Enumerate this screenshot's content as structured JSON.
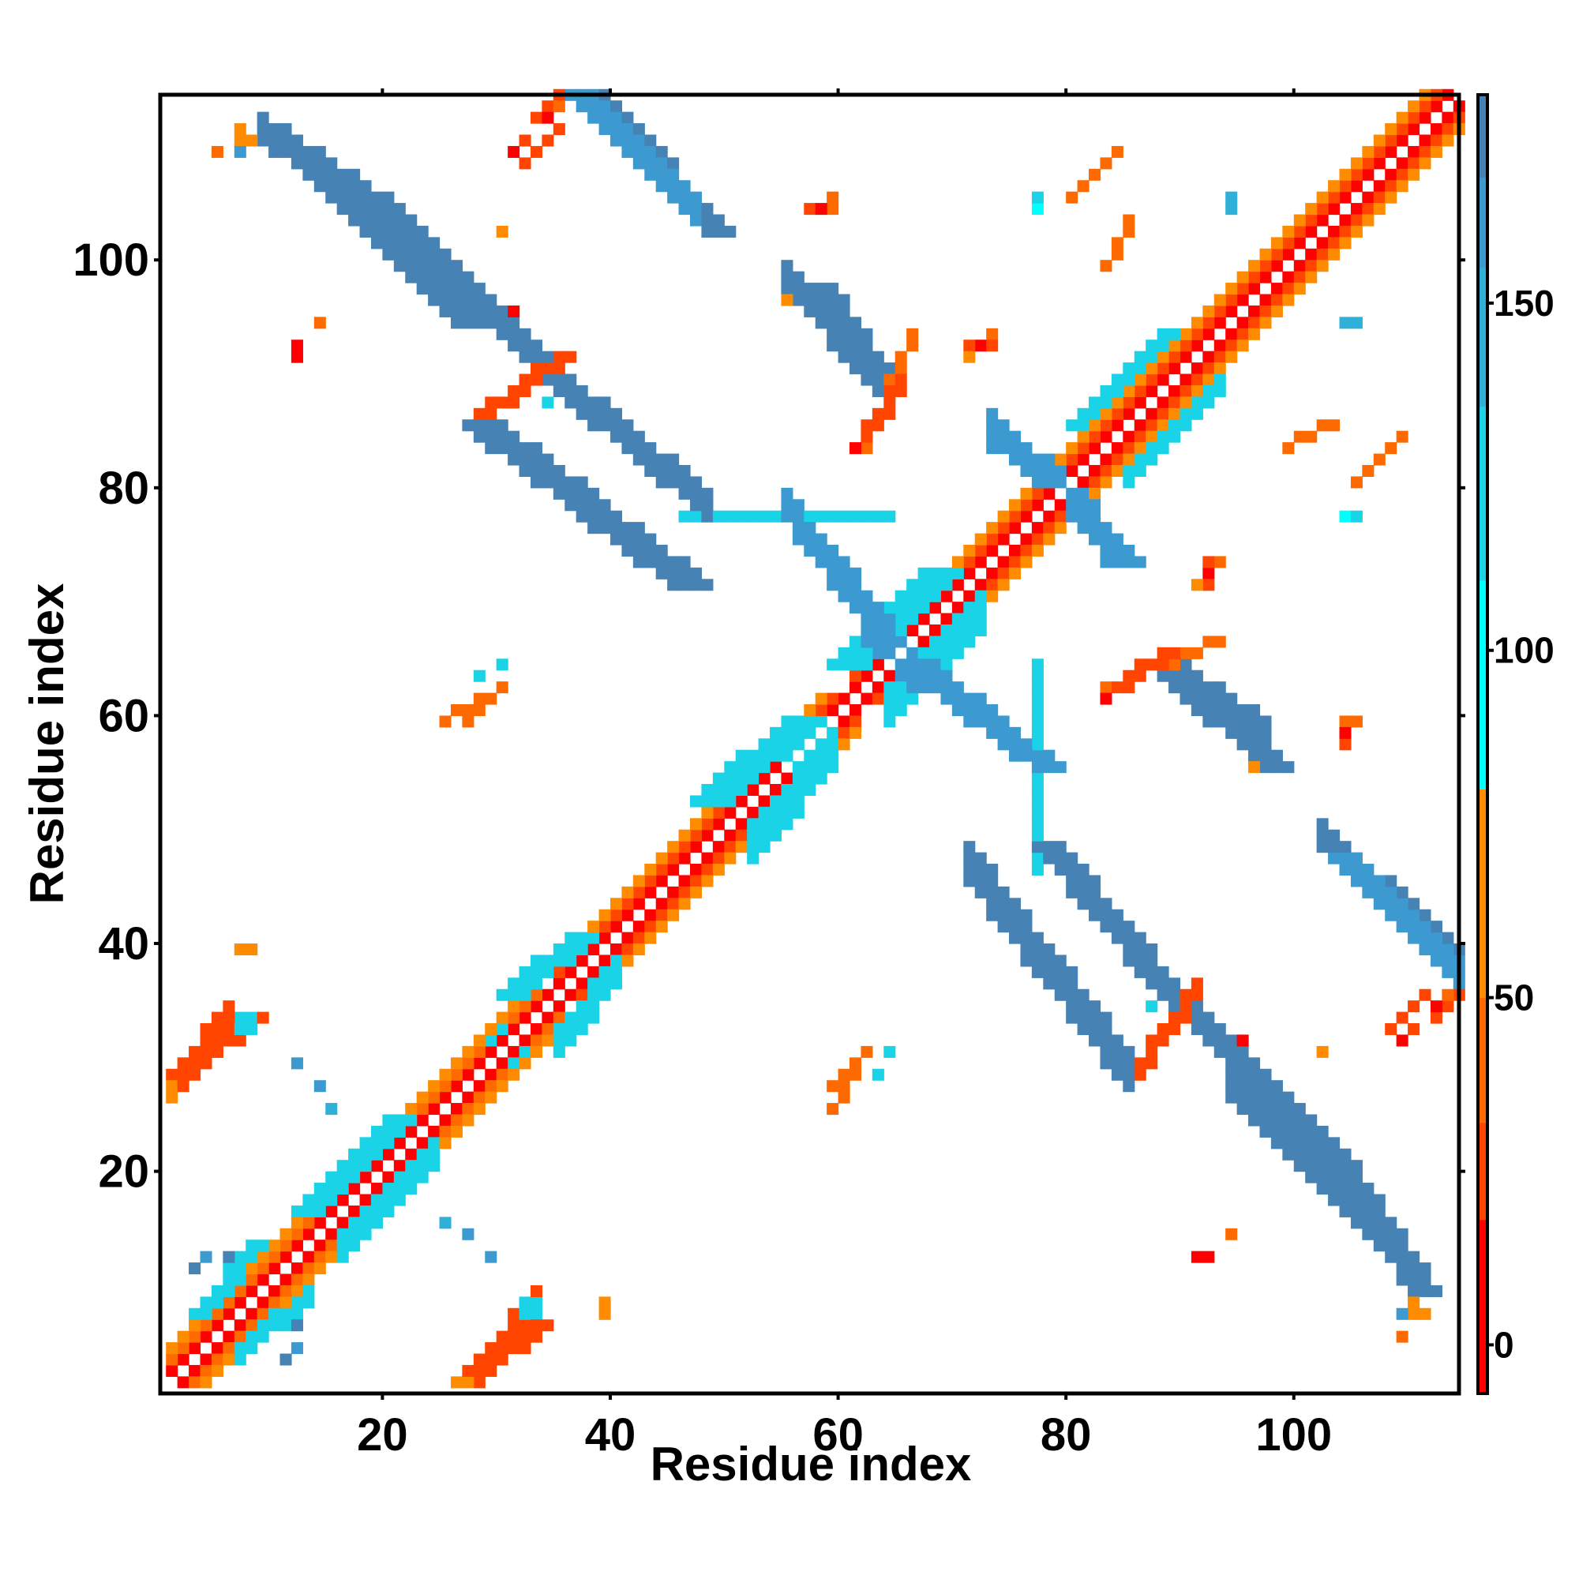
{
  "chart_data": {
    "type": "heatmap",
    "xlabel": "Residue index",
    "ylabel": "Residue index",
    "n_residues": 114,
    "xlim": [
      0.5,
      114.5
    ],
    "ylim": [
      0.5,
      114.5
    ],
    "x_ticks": [
      20,
      40,
      60,
      80,
      100
    ],
    "y_ticks": [
      20,
      40,
      60,
      80,
      100
    ],
    "x_tick_labels": [
      "20",
      "40",
      "60",
      "80",
      "100"
    ],
    "y_tick_labels": [
      "20",
      "40",
      "60",
      "80",
      "100"
    ],
    "grid": false,
    "legend": "colorbar on right",
    "colorbar": {
      "range": [
        -7,
        180
      ],
      "ticks": [
        0,
        50,
        100,
        150
      ],
      "tick_labels": [
        "0",
        "50",
        "100",
        "150"
      ],
      "bands": [
        {
          "from": -7,
          "to": 18,
          "color": "#ff0000"
        },
        {
          "from": 18,
          "to": 32,
          "color": "#ff4500"
        },
        {
          "from": 32,
          "to": 50,
          "color": "#ff6a00"
        },
        {
          "from": 50,
          "to": 80,
          "color": "#ff8c00"
        },
        {
          "from": 80,
          "to": 110,
          "color": "#00ffff"
        },
        {
          "from": 110,
          "to": 135,
          "color": "#1ad3e6"
        },
        {
          "from": 135,
          "to": 155,
          "color": "#2fb0d8"
        },
        {
          "from": 155,
          "to": 168,
          "color": "#3d9ad0"
        },
        {
          "from": 168,
          "to": 180,
          "color": "#4682b4"
        }
      ]
    },
    "segments": [
      {
        "from": [
          1,
          2
        ],
        "to": [
          34,
          35
        ],
        "width": 1,
        "value": 5
      },
      {
        "from": [
          1,
          3
        ],
        "to": [
          33,
          35
        ],
        "width": 1,
        "value": 40
      },
      {
        "from": [
          1,
          4
        ],
        "to": [
          31,
          34
        ],
        "width": 1,
        "value": 55
      },
      {
        "from": [
          35,
          36
        ],
        "to": [
          60,
          61
        ],
        "width": 1,
        "value": 5
      },
      {
        "from": [
          35,
          37
        ],
        "to": [
          59,
          61
        ],
        "width": 1,
        "value": 25
      },
      {
        "from": [
          35,
          38
        ],
        "to": [
          58,
          61
        ],
        "width": 1,
        "value": 60
      },
      {
        "from": [
          61,
          62
        ],
        "to": [
          113,
          114
        ],
        "width": 1,
        "value": 5
      },
      {
        "from": [
          61,
          63
        ],
        "to": [
          112,
          114
        ],
        "width": 1,
        "value": 30
      },
      {
        "from": [
          61,
          64
        ],
        "to": [
          111,
          114
        ],
        "width": 1,
        "value": 60
      },
      {
        "from": [
          3,
          7
        ],
        "to": [
          8,
          13
        ],
        "width": 2,
        "value": 120
      },
      {
        "from": [
          12,
          16
        ],
        "to": [
          20,
          24
        ],
        "width": 3,
        "value": 125
      },
      {
        "from": [
          30,
          35
        ],
        "to": [
          36,
          40
        ],
        "width": 3,
        "value": 130
      },
      {
        "from": [
          47,
          52
        ],
        "to": [
          55,
          59
        ],
        "width": 4,
        "value": 115
      },
      {
        "from": [
          59,
          64
        ],
        "to": [
          67,
          72
        ],
        "width": 4,
        "value": 112
      },
      {
        "from": [
          80,
          85
        ],
        "to": [
          88,
          93
        ],
        "width": 2,
        "value": 125
      },
      {
        "from": [
          9,
          111
        ],
        "to": [
          26,
          94
        ],
        "width": 3,
        "value": 175
      },
      {
        "from": [
          37,
          114
        ],
        "to": [
          48,
          102
        ],
        "width": 3,
        "value": 170
      },
      {
        "from": [
          27,
          85
        ],
        "to": [
          45,
          71
        ],
        "width": 4,
        "value": 175
      },
      {
        "from": [
          46,
          77
        ],
        "to": [
          63,
          77
        ],
        "width": 2,
        "value": 110
      },
      {
        "from": [
          58,
          73
        ],
        "to": [
          66,
          62
        ],
        "width": 3,
        "value": 165
      },
      {
        "from": [
          57,
          97
        ],
        "to": [
          63,
          88
        ],
        "width": 3,
        "value": 175
      },
      {
        "from": [
          66,
          63
        ],
        "to": [
          77,
          55
        ],
        "width": 3,
        "value": 165
      },
      {
        "from": [
          77,
          48
        ],
        "to": [
          87,
          36
        ],
        "width": 3,
        "value": 175
      },
      {
        "from": [
          88,
          35
        ],
        "to": [
          101,
          22
        ],
        "width": 3,
        "value": 170
      },
      {
        "from": [
          102,
          21
        ],
        "to": [
          110,
          9
        ],
        "width": 3,
        "value": 170
      },
      {
        "from": [
          89,
          62
        ],
        "to": [
          97,
          55
        ],
        "width": 3,
        "value": 170
      },
      {
        "from": [
          103,
          47
        ],
        "to": [
          114,
          36
        ],
        "width": 3,
        "value": 160
      },
      {
        "from": [
          76,
          82
        ],
        "to": [
          84,
          73
        ],
        "width": 3,
        "value": 165
      },
      {
        "from": [
          1,
          28
        ],
        "to": [
          7,
          33
        ],
        "width": 3,
        "value": 25
      },
      {
        "from": [
          26,
          1
        ],
        "to": [
          32,
          6
        ],
        "width": 3,
        "value": 25
      },
      {
        "from": [
          28,
          86
        ],
        "to": [
          35,
          91
        ],
        "width": 2,
        "value": 30
      },
      {
        "from": [
          62,
          83
        ],
        "to": [
          66,
          93
        ],
        "width": 1,
        "value": 40
      },
      {
        "from": [
          99,
          83
        ],
        "to": [
          103,
          85
        ],
        "width": 1,
        "value": 40
      },
      {
        "from": [
          80,
          105
        ],
        "to": [
          84,
          109
        ],
        "width": 1,
        "value": 40
      },
      {
        "from": [
          33,
          112
        ],
        "to": [
          35,
          114
        ],
        "width": 1,
        "value": 30
      },
      {
        "from": [
          84,
          62
        ],
        "to": [
          88,
          65
        ],
        "width": 2,
        "value": 30
      },
      {
        "from": [
          108,
          32
        ],
        "to": [
          111,
          35
        ],
        "width": 1,
        "value": 30
      },
      {
        "from": [
          25,
          59
        ],
        "to": [
          28,
          61
        ],
        "width": 1,
        "value": 40
      },
      {
        "from": [
          59,
          27
        ],
        "to": [
          62,
          30
        ],
        "width": 1,
        "value": 40
      },
      {
        "from": [
          26,
          1
        ],
        "to": [
          27,
          1
        ],
        "width": 1,
        "value": 55
      }
    ],
    "points": [
      [
        7,
        110,
        160
      ],
      [
        7,
        109,
        160
      ],
      [
        8,
        110,
        55
      ],
      [
        4,
        12,
        170
      ],
      [
        6,
        12,
        170
      ],
      [
        12,
        4,
        160
      ],
      [
        11,
        3,
        170
      ],
      [
        12,
        29,
        165
      ],
      [
        14,
        27,
        165
      ],
      [
        15,
        25,
        150
      ],
      [
        25,
        15,
        150
      ],
      [
        27,
        14,
        165
      ],
      [
        29,
        12,
        165
      ],
      [
        32,
        7,
        110
      ],
      [
        33,
        7,
        110
      ],
      [
        39,
        7,
        50
      ],
      [
        31,
        29,
        110
      ],
      [
        32,
        30,
        110
      ],
      [
        8,
        32,
        120
      ],
      [
        8,
        33,
        120
      ],
      [
        8,
        39,
        50
      ],
      [
        28,
        63,
        110
      ],
      [
        12,
        91,
        5
      ],
      [
        14,
        94,
        40
      ],
      [
        31,
        95,
        5
      ],
      [
        30,
        102,
        60
      ],
      [
        32,
        110,
        20
      ],
      [
        34,
        87,
        130
      ],
      [
        57,
        104,
        20
      ],
      [
        59,
        104,
        40
      ],
      [
        61,
        83,
        20
      ],
      [
        64,
        30,
        120
      ],
      [
        72,
        92,
        5
      ],
      [
        73,
        93,
        40
      ],
      [
        71,
        92,
        100
      ],
      [
        71,
        91,
        60
      ],
      [
        73,
        83,
        165
      ],
      [
        77,
        104,
        100
      ],
      [
        83,
        74,
        165
      ],
      [
        92,
        71,
        20
      ],
      [
        91,
        71,
        60
      ],
      [
        92,
        73,
        20
      ],
      [
        93,
        73,
        40
      ],
      [
        94,
        104,
        150
      ],
      [
        94,
        14,
        40
      ],
      [
        92,
        12,
        5
      ],
      [
        105,
        94,
        150
      ],
      [
        105,
        77,
        110
      ],
      [
        105,
        59,
        40
      ],
      [
        104,
        58,
        5
      ],
      [
        83,
        61,
        5
      ],
      [
        96,
        55,
        55
      ],
      [
        109,
        5,
        40
      ],
      [
        109,
        31,
        5
      ],
      [
        110,
        7,
        55
      ],
      [
        111,
        7,
        55
      ],
      [
        112,
        34,
        5
      ],
      [
        113,
        35,
        40
      ]
    ]
  }
}
